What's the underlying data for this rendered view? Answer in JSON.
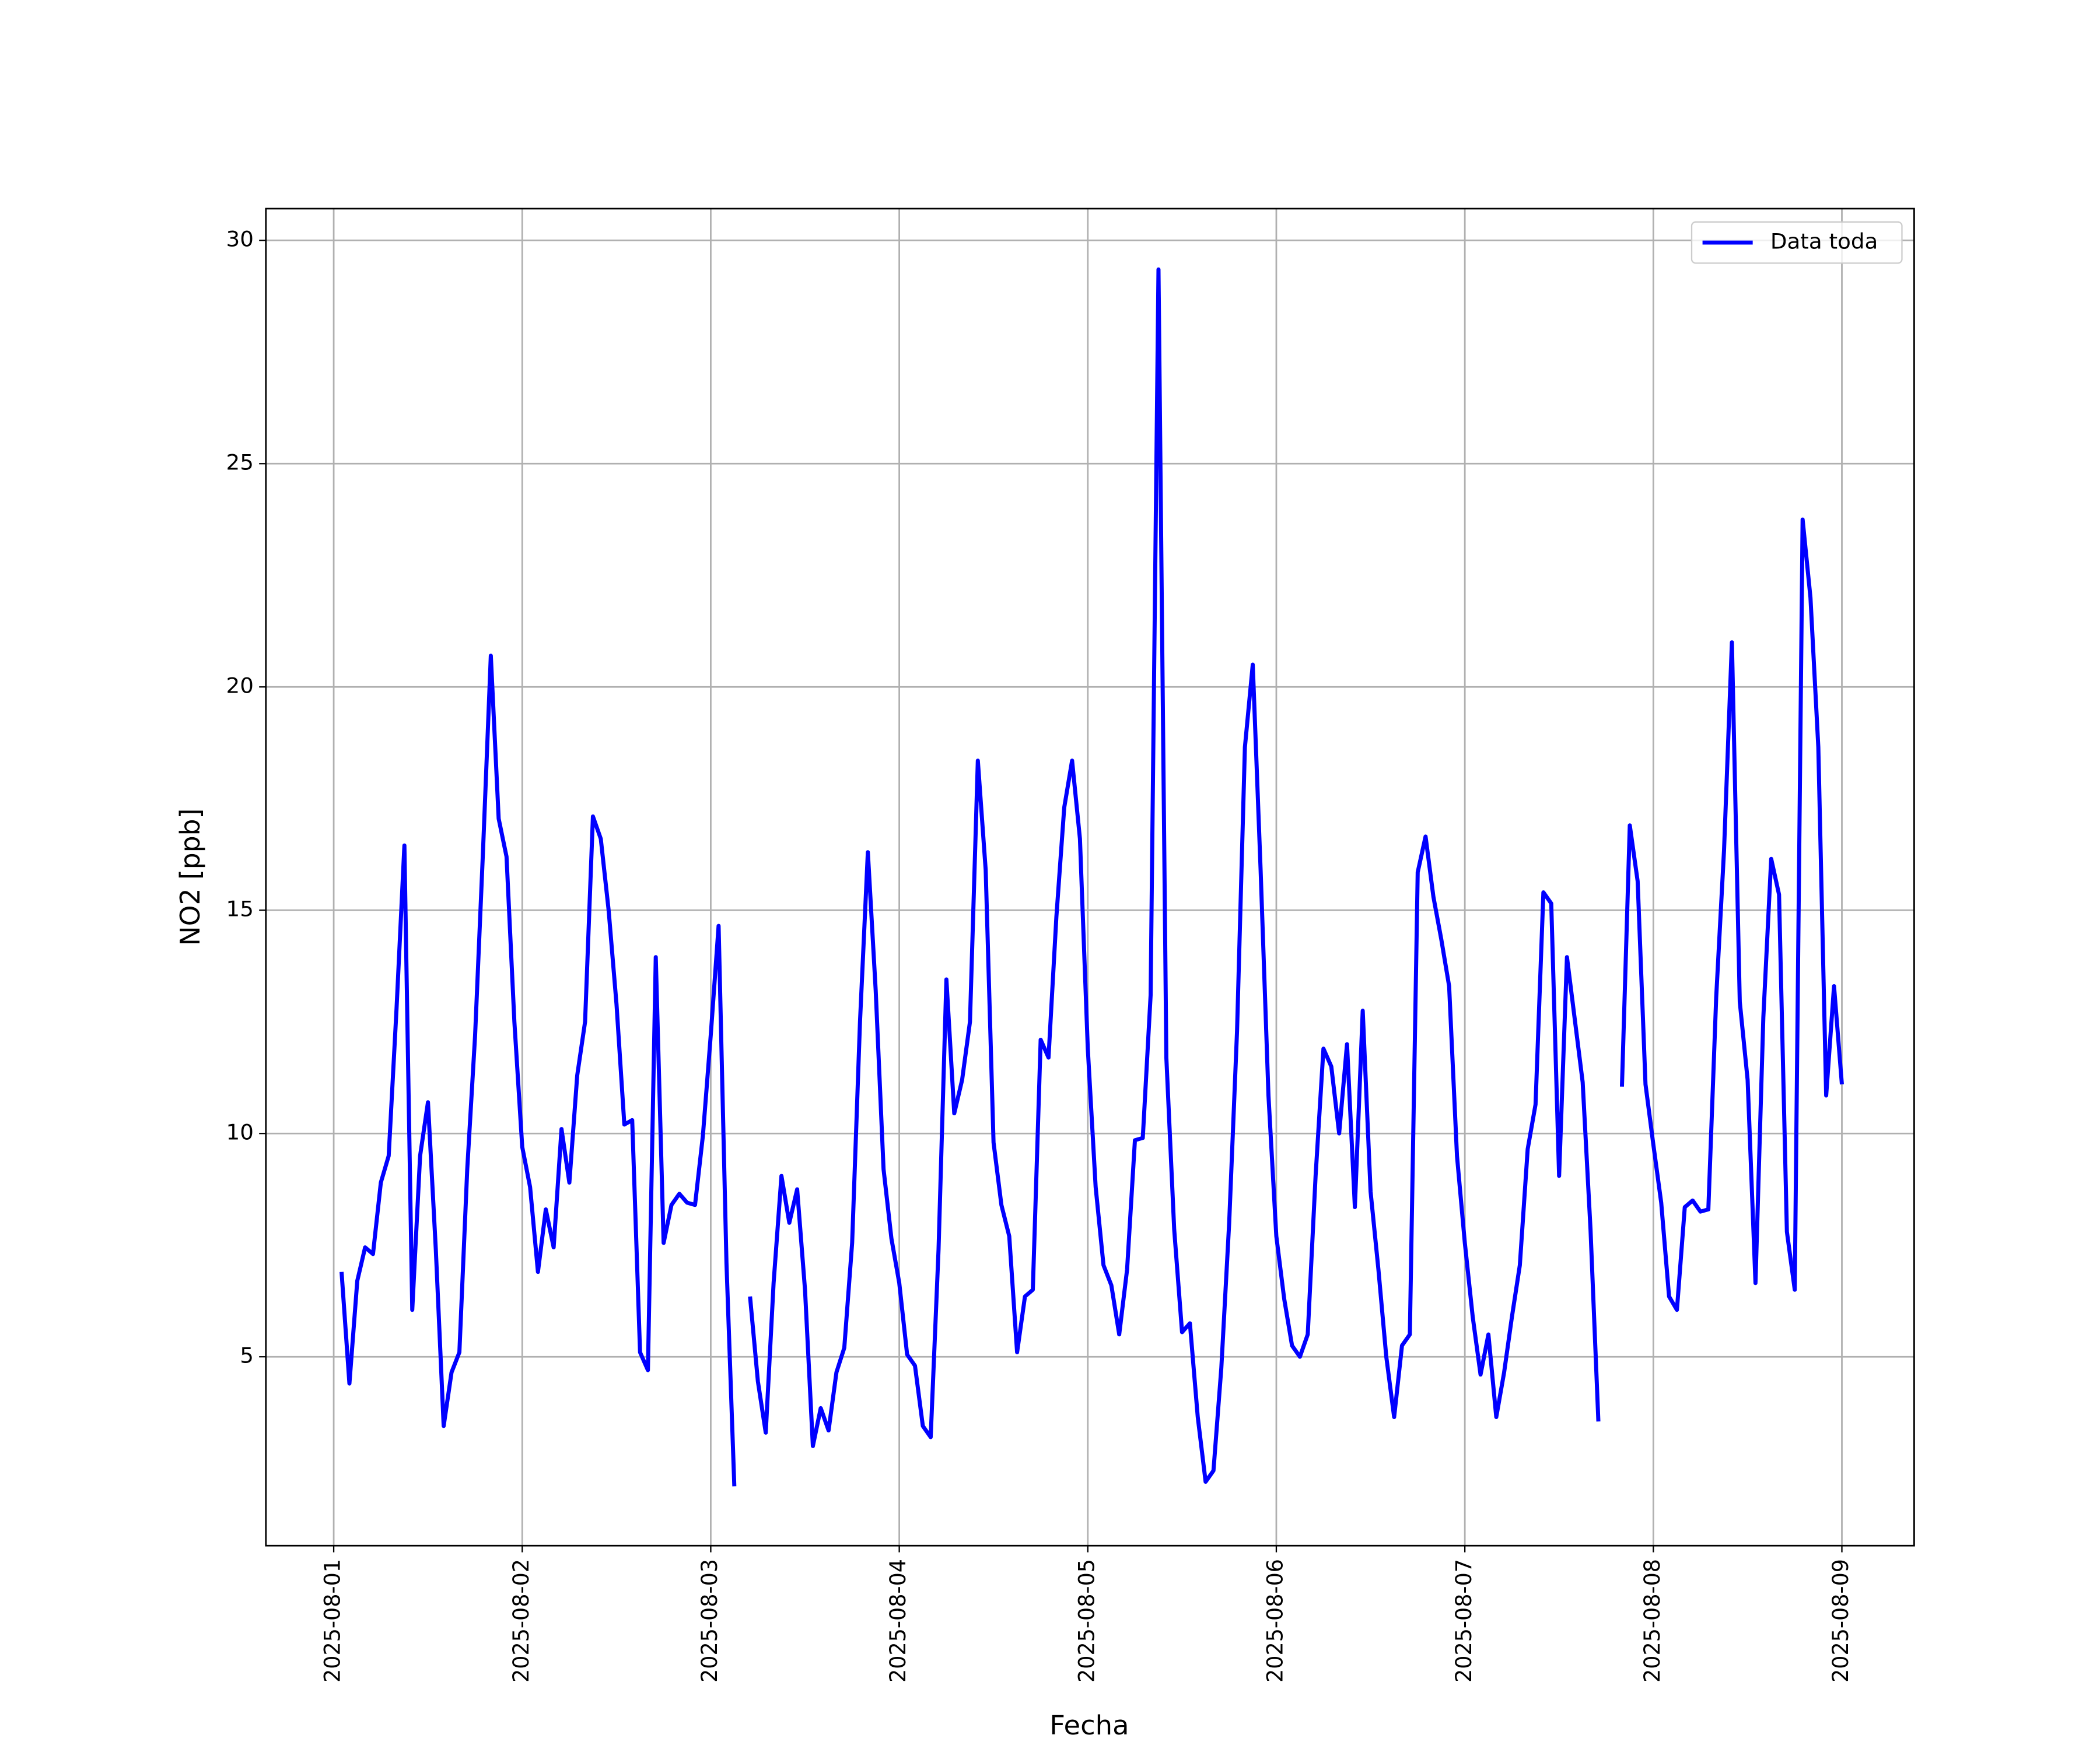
{
  "chart_data": {
    "type": "line",
    "xlabel": "Fecha",
    "ylabel": "NO2 [ppb]",
    "x": [
      "2025-08-01T01:00",
      "2025-08-01T02:00",
      "2025-08-01T03:00",
      "2025-08-01T04:00",
      "2025-08-01T05:00",
      "2025-08-01T06:00",
      "2025-08-01T07:00",
      "2025-08-01T08:00",
      "2025-08-01T09:00",
      "2025-08-01T10:00",
      "2025-08-01T11:00",
      "2025-08-01T12:00",
      "2025-08-01T13:00",
      "2025-08-01T14:00",
      "2025-08-01T15:00",
      "2025-08-01T16:00",
      "2025-08-01T17:00",
      "2025-08-01T18:00",
      "2025-08-01T19:00",
      "2025-08-01T20:00",
      "2025-08-01T21:00",
      "2025-08-01T22:00",
      "2025-08-01T23:00",
      "2025-08-02T00:00",
      "2025-08-02T01:00",
      "2025-08-02T02:00",
      "2025-08-02T03:00",
      "2025-08-02T04:00",
      "2025-08-02T05:00",
      "2025-08-02T06:00",
      "2025-08-02T07:00",
      "2025-08-02T08:00",
      "2025-08-02T09:00",
      "2025-08-02T10:00",
      "2025-08-02T11:00",
      "2025-08-02T12:00",
      "2025-08-02T13:00",
      "2025-08-02T14:00",
      "2025-08-02T15:00",
      "2025-08-02T16:00",
      "2025-08-02T17:00",
      "2025-08-02T18:00",
      "2025-08-02T19:00",
      "2025-08-02T20:00",
      "2025-08-02T21:00",
      "2025-08-02T22:00",
      "2025-08-02T23:00",
      "2025-08-03T00:00",
      "2025-08-03T01:00",
      "2025-08-03T02:00",
      "2025-08-03T03:00",
      "2025-08-03T04:00",
      "2025-08-03T05:00",
      "2025-08-03T06:00",
      "2025-08-03T07:00",
      "2025-08-03T08:00",
      "2025-08-03T09:00",
      "2025-08-03T10:00",
      "2025-08-03T11:00",
      "2025-08-03T12:00",
      "2025-08-03T13:00",
      "2025-08-03T14:00",
      "2025-08-03T15:00",
      "2025-08-03T16:00",
      "2025-08-03T17:00",
      "2025-08-03T18:00",
      "2025-08-03T19:00",
      "2025-08-03T20:00",
      "2025-08-03T21:00",
      "2025-08-03T22:00",
      "2025-08-03T23:00",
      "2025-08-04T00:00",
      "2025-08-04T01:00",
      "2025-08-04T02:00",
      "2025-08-04T03:00",
      "2025-08-04T04:00",
      "2025-08-04T05:00",
      "2025-08-04T06:00",
      "2025-08-04T07:00",
      "2025-08-04T08:00",
      "2025-08-04T09:00",
      "2025-08-04T10:00",
      "2025-08-04T11:00",
      "2025-08-04T12:00",
      "2025-08-04T13:00",
      "2025-08-04T14:00",
      "2025-08-04T15:00",
      "2025-08-04T16:00",
      "2025-08-04T17:00",
      "2025-08-04T18:00",
      "2025-08-04T19:00",
      "2025-08-04T20:00",
      "2025-08-04T21:00",
      "2025-08-04T22:00",
      "2025-08-04T23:00",
      "2025-08-05T00:00",
      "2025-08-05T01:00",
      "2025-08-05T02:00",
      "2025-08-05T03:00",
      "2025-08-05T04:00",
      "2025-08-05T05:00",
      "2025-08-05T06:00",
      "2025-08-05T07:00",
      "2025-08-05T08:00",
      "2025-08-05T09:00",
      "2025-08-05T10:00",
      "2025-08-05T11:00",
      "2025-08-05T12:00",
      "2025-08-05T13:00",
      "2025-08-05T14:00",
      "2025-08-05T15:00",
      "2025-08-05T16:00",
      "2025-08-05T17:00",
      "2025-08-05T18:00",
      "2025-08-05T19:00",
      "2025-08-05T20:00",
      "2025-08-05T21:00",
      "2025-08-05T22:00",
      "2025-08-05T23:00",
      "2025-08-06T00:00",
      "2025-08-06T01:00",
      "2025-08-06T02:00",
      "2025-08-06T03:00",
      "2025-08-06T04:00",
      "2025-08-06T05:00",
      "2025-08-06T06:00",
      "2025-08-06T07:00",
      "2025-08-06T08:00",
      "2025-08-06T09:00",
      "2025-08-06T10:00",
      "2025-08-06T11:00",
      "2025-08-06T12:00",
      "2025-08-06T13:00",
      "2025-08-06T14:00",
      "2025-08-06T15:00",
      "2025-08-06T16:00",
      "2025-08-06T17:00",
      "2025-08-06T18:00",
      "2025-08-06T19:00",
      "2025-08-06T20:00",
      "2025-08-06T21:00",
      "2025-08-06T22:00",
      "2025-08-06T23:00",
      "2025-08-07T00:00",
      "2025-08-07T01:00",
      "2025-08-07T02:00",
      "2025-08-07T03:00",
      "2025-08-07T04:00",
      "2025-08-07T05:00",
      "2025-08-07T06:00",
      "2025-08-07T07:00",
      "2025-08-07T08:00",
      "2025-08-07T09:00",
      "2025-08-07T10:00",
      "2025-08-07T11:00",
      "2025-08-07T12:00",
      "2025-08-07T13:00",
      "2025-08-07T14:00",
      "2025-08-07T15:00",
      "2025-08-07T16:00",
      "2025-08-07T17:00",
      "2025-08-07T18:00",
      "2025-08-07T19:00",
      "2025-08-07T20:00",
      "2025-08-07T21:00",
      "2025-08-07T22:00",
      "2025-08-07T23:00",
      "2025-08-08T00:00",
      "2025-08-08T01:00",
      "2025-08-08T02:00",
      "2025-08-08T03:00",
      "2025-08-08T04:00",
      "2025-08-08T05:00",
      "2025-08-08T06:00",
      "2025-08-08T07:00",
      "2025-08-08T08:00",
      "2025-08-08T09:00",
      "2025-08-08T10:00",
      "2025-08-08T11:00",
      "2025-08-08T12:00",
      "2025-08-08T13:00",
      "2025-08-08T14:00",
      "2025-08-08T15:00",
      "2025-08-08T16:00",
      "2025-08-08T17:00",
      "2025-08-08T18:00",
      "2025-08-08T19:00",
      "2025-08-08T20:00",
      "2025-08-08T21:00",
      "2025-08-08T22:00",
      "2025-08-08T23:00",
      "2025-08-09T00:00"
    ],
    "series": [
      {
        "name": "Data toda",
        "color": "#0000ff",
        "values": [
          6.9,
          4.4,
          6.7,
          7.45,
          7.3,
          8.9,
          9.5,
          12.8,
          16.45,
          6.05,
          9.5,
          10.7,
          7.4,
          3.45,
          4.65,
          5.1,
          9.2,
          12.2,
          16.3,
          20.7,
          17.05,
          16.2,
          12.5,
          9.7,
          8.8,
          6.9,
          8.3,
          7.45,
          10.1,
          8.9,
          11.3,
          12.5,
          17.1,
          16.6,
          15.0,
          12.9,
          10.2,
          10.3,
          5.1,
          4.7,
          13.95,
          7.55,
          8.4,
          8.65,
          8.45,
          8.4,
          9.95,
          12.2,
          14.65,
          7.1,
          2.1,
          null,
          6.35,
          4.45,
          3.3,
          6.65,
          9.05,
          8.0,
          8.75,
          6.5,
          3.0,
          3.85,
          3.35,
          4.65,
          5.2,
          7.55,
          12.5,
          16.3,
          13.2,
          9.2,
          7.65,
          6.65,
          5.05,
          4.8,
          3.45,
          3.2,
          7.4,
          13.45,
          10.45,
          11.2,
          12.5,
          18.35,
          15.9,
          9.8,
          8.4,
          7.7,
          5.1,
          6.35,
          6.5,
          12.1,
          11.7,
          14.85,
          17.3,
          18.35,
          16.6,
          11.9,
          8.8,
          7.05,
          6.6,
          5.5,
          6.95,
          9.85,
          9.9,
          13.1,
          29.35,
          11.7,
          7.85,
          5.55,
          5.75,
          3.65,
          2.2,
          2.45,
          4.75,
          8.0,
          12.3,
          18.65,
          20.5,
          15.9,
          10.85,
          7.7,
          6.3,
          5.25,
          5.0,
          5.5,
          9.05,
          11.9,
          11.5,
          10.0,
          12.0,
          8.35,
          12.75,
          8.7,
          6.95,
          5.0,
          3.65,
          5.25,
          5.5,
          15.85,
          16.65,
          15.3,
          14.35,
          13.3,
          9.5,
          7.55,
          5.9,
          4.6,
          5.5,
          3.65,
          4.65,
          5.9,
          7.05,
          9.65,
          10.65,
          15.4,
          15.15,
          9.05,
          13.95,
          12.55,
          11.15,
          7.85,
          3.55,
          null,
          null,
          11.05,
          16.9,
          15.65,
          11.1,
          9.75,
          8.45,
          6.35,
          6.05,
          8.35,
          8.5,
          8.25,
          8.3,
          13.05,
          16.35,
          21.0,
          12.95,
          11.2,
          6.65,
          12.6,
          16.15,
          15.35,
          7.8,
          6.5,
          23.75,
          22.0,
          18.65,
          10.85,
          13.3,
          11.1
        ]
      }
    ],
    "xlim": [
      "2025-07-31T15:22",
      "2025-08-09T09:12"
    ],
    "xticks": [
      "2025-08-01",
      "2025-08-02",
      "2025-08-03",
      "2025-08-04",
      "2025-08-05",
      "2025-08-06",
      "2025-08-07",
      "2025-08-08",
      "2025-08-09"
    ],
    "ylim": [
      0.77,
      30.71
    ],
    "yticks": [
      5,
      10,
      15,
      20,
      25,
      30
    ],
    "grid": true,
    "legend": "upper right"
  }
}
